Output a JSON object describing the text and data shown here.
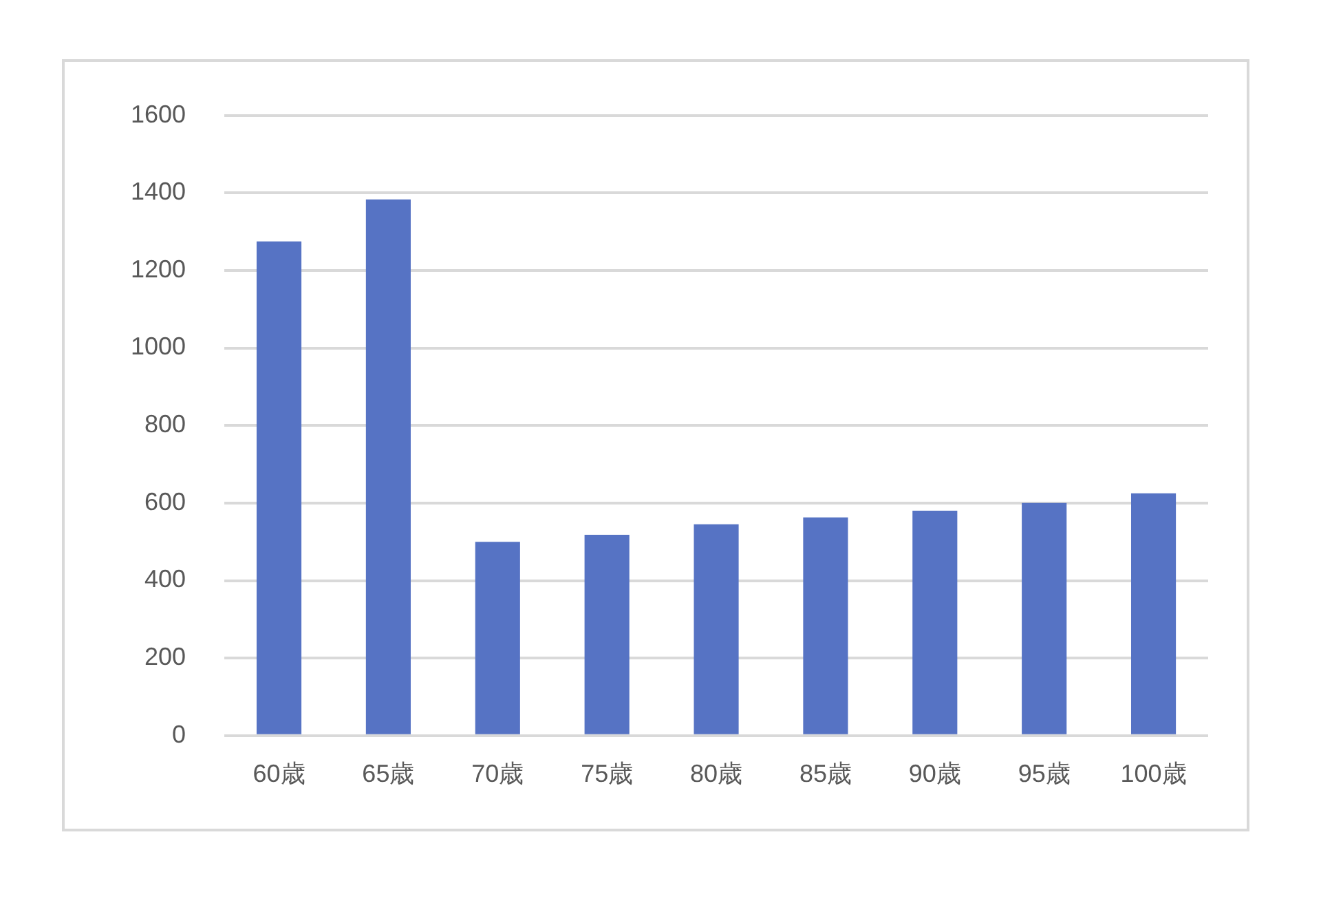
{
  "chart_data": {
    "type": "bar",
    "categories": [
      "60歳",
      "65歳",
      "70歳",
      "75歳",
      "80歳",
      "85歳",
      "90歳",
      "95歳",
      "100歳"
    ],
    "values": [
      1275,
      1383,
      500,
      518,
      545,
      563,
      580,
      600,
      625
    ],
    "color": "#5673c4",
    "ylim": [
      0,
      1600
    ],
    "yticks": [
      0,
      200,
      400,
      600,
      800,
      1000,
      1200,
      1400,
      1600
    ],
    "grid": "y",
    "legend": false
  }
}
